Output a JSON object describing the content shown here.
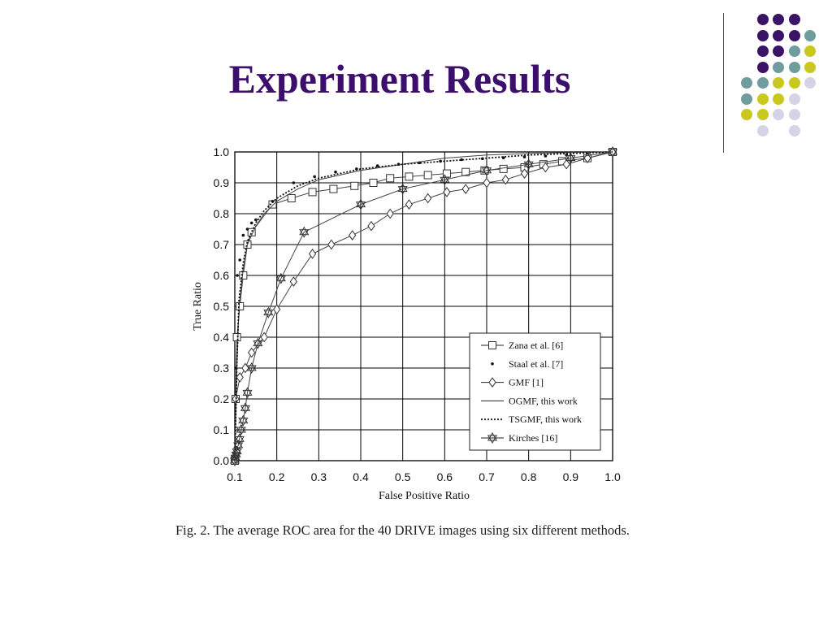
{
  "slide": {
    "title": "Experiment Results",
    "caption": "Fig. 2. The average ROC area for the 40 DRIVE images using six different methods.",
    "decor_colors": {
      "purple": "#3b1366",
      "teal": "#6f9c9c",
      "yellow": "#c8c81e",
      "lavender": "#d5d3e6"
    },
    "decor_grid": [
      [
        "",
        "purple",
        "purple",
        "purple",
        ""
      ],
      [
        "",
        "purple",
        "purple",
        "purple",
        "teal"
      ],
      [
        "",
        "purple",
        "purple",
        "teal",
        "yellow"
      ],
      [
        "",
        "purple",
        "teal",
        "teal",
        "yellow"
      ],
      [
        "teal",
        "teal",
        "yellow",
        "yellow",
        "lavender"
      ],
      [
        "teal",
        "yellow",
        "yellow",
        "lavender",
        ""
      ],
      [
        "yellow",
        "yellow",
        "lavender",
        "lavender",
        ""
      ],
      [
        "",
        "lavender",
        "",
        "lavender",
        ""
      ]
    ]
  },
  "chart_data": {
    "type": "line",
    "title": "",
    "xlabel": "False Positive Ratio",
    "ylabel": "True Ratio",
    "xlim": [
      0.1,
      1.0
    ],
    "ylim": [
      0.0,
      1.0
    ],
    "x_ticks": [
      0.1,
      0.2,
      0.3,
      0.4,
      0.5,
      0.6,
      0.7,
      0.8,
      0.9,
      1.0
    ],
    "y_ticks": [
      0.0,
      0.1,
      0.2,
      0.3,
      0.4,
      0.5,
      0.6,
      0.7,
      0.8,
      0.9,
      1.0
    ],
    "x_tick_labels": [
      "0.1",
      "0.2",
      "0.3",
      "0.4",
      "0.5",
      "0.6",
      "0.7",
      "0.8",
      "0.9",
      "1.0"
    ],
    "y_tick_labels": [
      "0.0",
      "0.1",
      "0.2",
      "0.3",
      "0.4",
      "0.5",
      "0.6",
      "0.7",
      "0.8",
      "0.9",
      "1.0"
    ],
    "grid": true,
    "legend_position": "lower-right",
    "series": [
      {
        "name": "Zana et al. [6]",
        "marker": "square",
        "line": "solid",
        "x": [
          0.1,
          0.102,
          0.105,
          0.112,
          0.12,
          0.13,
          0.14,
          0.19,
          0.235,
          0.285,
          0.335,
          0.385,
          0.43,
          0.47,
          0.515,
          0.56,
          0.605,
          0.65,
          0.695,
          0.74,
          0.79,
          0.835,
          0.88,
          0.94,
          1.0
        ],
        "y": [
          0.0,
          0.2,
          0.4,
          0.5,
          0.6,
          0.7,
          0.74,
          0.83,
          0.85,
          0.87,
          0.88,
          0.89,
          0.9,
          0.915,
          0.92,
          0.925,
          0.93,
          0.935,
          0.94,
          0.945,
          0.95,
          0.96,
          0.97,
          0.98,
          1.0
        ]
      },
      {
        "name": "Staal et al. [7]",
        "marker": "dot",
        "line": "none",
        "x": [
          0.1,
          0.102,
          0.106,
          0.112,
          0.12,
          0.13,
          0.14,
          0.15,
          0.19,
          0.24,
          0.29,
          0.34,
          0.39,
          0.44,
          0.49,
          0.54,
          0.59,
          0.64,
          0.69,
          0.74,
          0.79,
          0.84,
          0.89,
          0.94,
          1.0
        ],
        "y": [
          0.0,
          0.3,
          0.6,
          0.65,
          0.73,
          0.75,
          0.77,
          0.78,
          0.84,
          0.9,
          0.92,
          0.935,
          0.945,
          0.955,
          0.96,
          0.965,
          0.97,
          0.975,
          0.978,
          0.981,
          0.984,
          0.987,
          0.99,
          0.994,
          1.0
        ]
      },
      {
        "name": "GMF [1]",
        "marker": "diamond",
        "line": "solid",
        "x": [
          0.1,
          0.102,
          0.112,
          0.125,
          0.14,
          0.17,
          0.2,
          0.24,
          0.285,
          0.33,
          0.38,
          0.425,
          0.47,
          0.515,
          0.56,
          0.605,
          0.65,
          0.7,
          0.745,
          0.79,
          0.84,
          0.89,
          0.94,
          1.0
        ],
        "y": [
          0.0,
          0.2,
          0.27,
          0.3,
          0.35,
          0.4,
          0.49,
          0.58,
          0.67,
          0.7,
          0.73,
          0.76,
          0.8,
          0.83,
          0.85,
          0.87,
          0.88,
          0.9,
          0.91,
          0.93,
          0.95,
          0.96,
          0.98,
          1.0
        ]
      },
      {
        "name": "OGMF, this work",
        "marker": "none",
        "line": "solid",
        "x": [
          0.1,
          0.105,
          0.11,
          0.12,
          0.13,
          0.15,
          0.17,
          0.2,
          0.25,
          0.3,
          0.4,
          0.5,
          0.6,
          0.7,
          0.8,
          0.9,
          1.0
        ],
        "y": [
          0.0,
          0.3,
          0.5,
          0.62,
          0.7,
          0.76,
          0.8,
          0.84,
          0.88,
          0.91,
          0.94,
          0.96,
          0.98,
          0.99,
          0.995,
          0.998,
          1.0
        ]
      },
      {
        "name": "TSGMF, this work",
        "marker": "none",
        "line": "dotted",
        "x": [
          0.1,
          0.105,
          0.11,
          0.12,
          0.13,
          0.15,
          0.17,
          0.2,
          0.25,
          0.3,
          0.4,
          0.5,
          0.6,
          0.7,
          0.8,
          0.9,
          1.0
        ],
        "y": [
          0.0,
          0.32,
          0.52,
          0.64,
          0.71,
          0.77,
          0.81,
          0.85,
          0.89,
          0.915,
          0.945,
          0.96,
          0.97,
          0.98,
          0.99,
          0.995,
          1.0
        ]
      },
      {
        "name": "Kirches [16]",
        "marker": "star",
        "line": "solid",
        "x": [
          0.1,
          0.101,
          0.103,
          0.105,
          0.108,
          0.111,
          0.115,
          0.12,
          0.125,
          0.13,
          0.14,
          0.155,
          0.18,
          0.21,
          0.265,
          0.4,
          0.5,
          0.6,
          0.7,
          0.8,
          0.9,
          1.0
        ],
        "y": [
          0.0,
          0.01,
          0.02,
          0.03,
          0.05,
          0.07,
          0.1,
          0.13,
          0.17,
          0.22,
          0.3,
          0.38,
          0.48,
          0.59,
          0.74,
          0.83,
          0.88,
          0.91,
          0.94,
          0.96,
          0.98,
          1.0
        ]
      }
    ]
  }
}
